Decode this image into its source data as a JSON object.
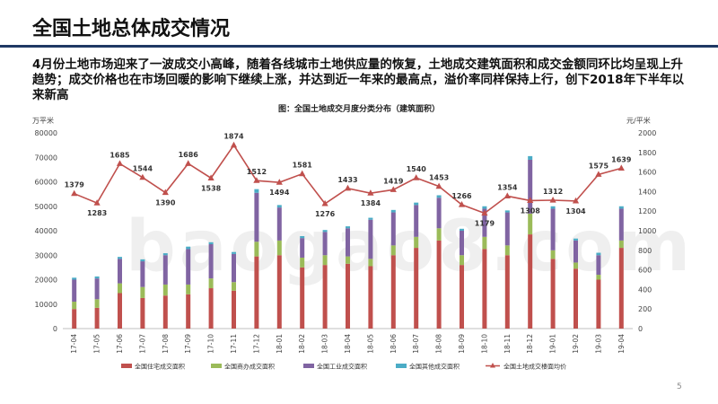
{
  "slide": {
    "title": "全国土地总体成交情况",
    "summary": "4月份土地市场迎来了一波成交小高峰，随着各线城市土地供应量的恢复，土地成交建筑面积和成交金额同环比均呈现上升趋势；成交价格也在市场回暖的影响下继续上涨，并达到近一年来的最高点，溢价率同样保持上行，创下2018年下半年以来新高",
    "page_number": "5",
    "watermark": "baogao8.com"
  },
  "colors": {
    "residential": "#c0504d",
    "commercial": "#9bbb59",
    "industrial": "#8064a2",
    "other": "#4bacc6",
    "price_line": "#c0504d",
    "title_rule": "#1f3864"
  },
  "chart_data": {
    "type": "bar",
    "stacked": true,
    "title": "图：全国土地成交月度分类分布（建筑面积）",
    "ylabel": "万平米",
    "y2label": "元/平米",
    "ylim": [
      0,
      80000
    ],
    "y2lim": [
      0,
      2000
    ],
    "yticks": [
      "0",
      "10000",
      "20000",
      "30000",
      "40000",
      "50000",
      "60000",
      "70000",
      "80000"
    ],
    "y2ticks": [
      "0",
      "200",
      "400",
      "600",
      "800",
      "1000",
      "1200",
      "1400",
      "1600",
      "1800",
      "2000"
    ],
    "categories": [
      "17-04",
      "17-05",
      "17-06",
      "17-07",
      "17-08",
      "17-09",
      "17-10",
      "17-11",
      "17-12",
      "18-01",
      "18-02",
      "18-03",
      "18-04",
      "18-05",
      "18-06",
      "18-07",
      "18-08",
      "18-09",
      "18-10",
      "18-11",
      "18-12",
      "19-01",
      "19-02",
      "19-03",
      "19-04"
    ],
    "series": [
      {
        "name": "全国住宅成交面积",
        "type": "bar",
        "color_key": "residential",
        "values": [
          8000,
          8500,
          14500,
          12500,
          13500,
          14000,
          16500,
          15500,
          29500,
          30000,
          25000,
          26000,
          26500,
          25500,
          30000,
          33000,
          36000,
          26000,
          32500,
          30000,
          38500,
          28500,
          24500,
          20000,
          33000
        ]
      },
      {
        "name": "全国商办成交面积",
        "type": "bar",
        "color_key": "commercial",
        "values": [
          3000,
          3500,
          4000,
          4500,
          4500,
          4000,
          4000,
          3500,
          6000,
          6000,
          4000,
          4000,
          3000,
          3000,
          4000,
          4500,
          5000,
          4000,
          5000,
          4000,
          8500,
          3500,
          2500,
          2000,
          3000
        ]
      },
      {
        "name": "全国工业成交面积",
        "type": "bar",
        "color_key": "industrial",
        "values": [
          9000,
          8500,
          10000,
          10500,
          12000,
          14500,
          14000,
          11500,
          20000,
          13500,
          8000,
          9500,
          11500,
          16000,
          13500,
          13000,
          12500,
          10000,
          11500,
          13500,
          22000,
          17000,
          9000,
          8000,
          13000
        ]
      },
      {
        "name": "全国其他成交面积",
        "type": "bar",
        "color_key": "other",
        "values": [
          800,
          800,
          800,
          800,
          800,
          1000,
          800,
          800,
          1500,
          1000,
          800,
          800,
          800,
          800,
          1000,
          1000,
          1000,
          800,
          1000,
          800,
          1500,
          1000,
          800,
          1000,
          1000
        ]
      },
      {
        "name": "全国土地成交楼面均价",
        "type": "line",
        "axis": "right",
        "color_key": "price_line",
        "values": [
          1379,
          1283,
          1685,
          1544,
          1390,
          1686,
          1538,
          1874,
          1512,
          1494,
          1581,
          1276,
          1433,
          1384,
          1419,
          1540,
          1453,
          1266,
          1179,
          1354,
          1308,
          1312,
          1304,
          1575,
          1639
        ]
      }
    ]
  }
}
